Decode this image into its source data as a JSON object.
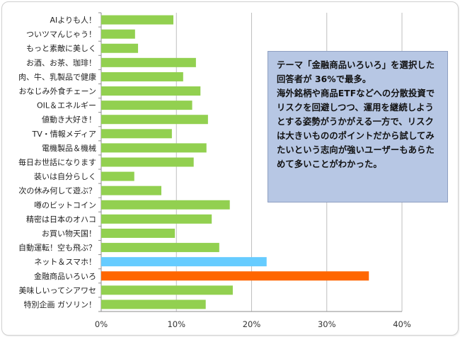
{
  "chart_data": {
    "type": "bar",
    "orientation": "horizontal",
    "categories": [
      "AIよりも人！",
      "ついツマんじゃう！",
      "もっと素敵に美しく",
      "お酒、お茶、珈琲！",
      "肉、牛、乳製品で健康",
      "おなじみ外食チェーン",
      "OIL＆エネルギー",
      "値動き大好き！",
      "TV・情報メディア",
      "電機製品＆機械",
      "毎日お世話になります",
      "装いは自分らしく",
      "次の休み何して遊ぶ？",
      "噂のビットコイン",
      "精密は日本のオハコ",
      "お買い物天国！",
      "自動運転！空も飛ぶ？",
      "ネット＆スマホ！",
      "金融商品いろいろ",
      "美味しいってシアワセ",
      "特別企画 ガソリン！"
    ],
    "values": [
      9.6,
      4.5,
      4.9,
      12.6,
      10.9,
      13.2,
      12.1,
      14.2,
      9.4,
      14.0,
      12.3,
      4.4,
      8.0,
      17.1,
      14.7,
      9.8,
      15.7,
      22.0,
      35.6,
      17.5,
      13.9
    ],
    "bar_colors": [
      "#92d050",
      "#92d050",
      "#92d050",
      "#92d050",
      "#92d050",
      "#92d050",
      "#92d050",
      "#92d050",
      "#92d050",
      "#92d050",
      "#92d050",
      "#92d050",
      "#92d050",
      "#92d050",
      "#92d050",
      "#92d050",
      "#92d050",
      "#66ccff",
      "#ff6600",
      "#92d050",
      "#92d050"
    ],
    "x_ticks": [
      "0%",
      "10%",
      "20%",
      "30%",
      "40%"
    ],
    "xlim": [
      0,
      40
    ],
    "grid": "vertical",
    "title": "",
    "xlabel": "",
    "ylabel": ""
  },
  "annotation": {
    "text": "テーマ「金融商品いろいろ」を選択した回答者が 36%で最多。\n海外銘柄や商品ETFなどへの分散投資でリスクを回避しつつ、運用を継続しようとする姿勢がうかがえる一方で、リスクは大きいもののポイントだから試してみたいという志向が強いユーザーもあらためて多いことがわかった。"
  },
  "colors": {
    "default_bar": "#92d050",
    "highlight_bar": "#ff6600",
    "secondary_bar": "#66ccff",
    "annotation_bg": "#b7c7e4"
  }
}
